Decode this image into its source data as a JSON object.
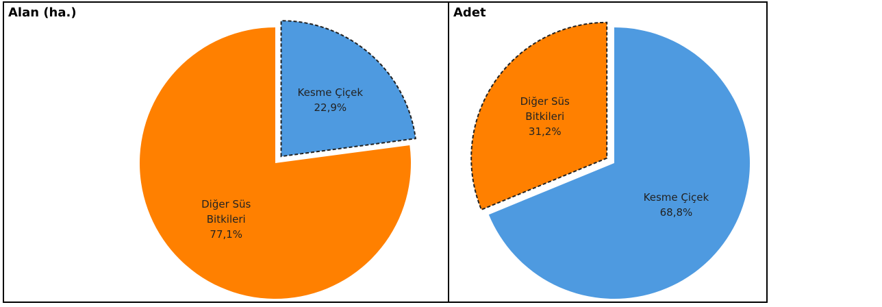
{
  "chart_data": [
    {
      "type": "pie",
      "title": "Alan (ha.)",
      "categories": [
        "Kesme Çiçek",
        "Diğer Süs Bitkileri"
      ],
      "values": [
        22.9,
        77.1
      ],
      "value_labels": [
        "22,9%",
        "77,1%"
      ],
      "colors": [
        "#4e9ae0",
        "#ff8000"
      ],
      "exploded": [
        true,
        false
      ]
    },
    {
      "type": "pie",
      "title": "Adet",
      "categories": [
        "Kesme Çiçek",
        "Diğer Süs Bitkileri"
      ],
      "values": [
        68.8,
        31.2
      ],
      "value_labels": [
        "68,8%",
        "31,2%"
      ],
      "colors": [
        "#4e9ae0",
        "#ff8000"
      ],
      "exploded": [
        false,
        true
      ]
    }
  ]
}
